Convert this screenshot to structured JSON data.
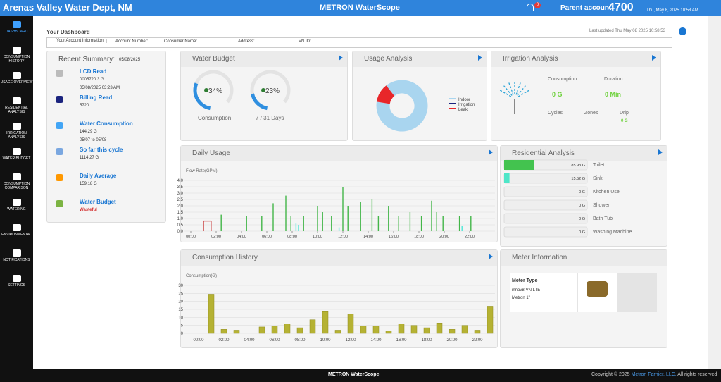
{
  "header": {
    "title": "Arenas Valley Water Dept, NM",
    "brand": "METRON WaterScope",
    "notification_count": "0",
    "parent_account_label": "Parent account:",
    "parent_account": "4700",
    "date": "Thu, May 8, 2025 10:58 AM"
  },
  "sidebar": [
    "DASHBOARD",
    "CONSUMPTION HISTORY",
    "USAGE OVERVIEW",
    "RESIDENTIAL ANALYSIS",
    "IRRIGATION ANALYSIS",
    "WATER BUDGET",
    "CONSUMPTION COMPARISON",
    "WATERING",
    "ENVIRONMENTAL",
    "NOTIFICATIONS",
    "SETTINGS"
  ],
  "dashboard": {
    "title": "Your Dashboard",
    "last_updated": "Last updated Thu May 08 2025 10:58:53",
    "account_info": "Your Account Information",
    "account_number": "Account Number:",
    "consumer_name": "Consumer Name:",
    "address": "Address:",
    "vn_id": "VN ID:"
  },
  "recent_summary": {
    "title": "Recent Summary:",
    "date": "05/08/2025",
    "items": [
      {
        "label": "LCD Read",
        "lines": [
          "0005720.3 G",
          "05/08/2025 03:23 AM"
        ]
      },
      {
        "label": "Billing Read",
        "lines": [
          "5720"
        ]
      },
      {
        "label": "Water Consumption",
        "lines": [
          "144.29 G",
          "05/07 to 05/08"
        ]
      },
      {
        "label": "So far this cycle",
        "lines": [
          "1114.27 G"
        ]
      },
      {
        "label": "Daily Average",
        "lines": [
          "159.18 G"
        ]
      },
      {
        "label": "Water Budget",
        "lines": [
          "Wasteful"
        ]
      }
    ]
  },
  "water_budget": {
    "title": "Water Budget",
    "gauges": [
      {
        "value": 34,
        "value_label": "34%",
        "label": "Consumption"
      },
      {
        "value": 23,
        "value_label": "23%",
        "label": "7 / 31 Days"
      }
    ]
  },
  "usage_analysis": {
    "type": "pie",
    "title": "Usage Analysis",
    "series": [
      {
        "name": "Indoor",
        "color": "#a9d5ef",
        "value": 88
      },
      {
        "name": "Irrigation",
        "color": "#1a237e",
        "value": 0
      },
      {
        "name": "Leak",
        "color": "#e8262a",
        "value": 12
      }
    ]
  },
  "irrigation_analysis": {
    "title": "Irrigation Analysis",
    "consumption_label": "Consumption",
    "consumption": "0 G",
    "duration_label": "Duration",
    "duration": "0 Min",
    "cycles_label": "Cycles",
    "zones_label": "Zones",
    "zones": "-",
    "drip_label": "Drip",
    "drip": "0 G"
  },
  "daily_usage": {
    "type": "line",
    "title": "Daily Usage",
    "ylabel": "Flow Rate(GPM)",
    "xlim": [
      -0.5,
      24
    ],
    "ylim": [
      0,
      4
    ],
    "yticks": [
      {
        "value": 0,
        "label": "0.0"
      },
      {
        "value": 0.5,
        "label": "0.5"
      },
      {
        "value": 1,
        "label": "1.0"
      },
      {
        "value": 1.5,
        "label": "1.5"
      },
      {
        "value": 2,
        "label": "2.0"
      },
      {
        "value": 2.5,
        "label": "2.5"
      },
      {
        "value": 3,
        "label": "3.0"
      },
      {
        "value": 3.5,
        "label": "3.5"
      },
      {
        "value": 4,
        "label": "4.0"
      }
    ],
    "xticks": [
      {
        "value": 0,
        "label": "00:00"
      },
      {
        "value": 2,
        "label": "02:00"
      },
      {
        "value": 4,
        "label": "04:00"
      },
      {
        "value": 6,
        "label": "06:00"
      },
      {
        "value": 8,
        "label": "08:00"
      },
      {
        "value": 10,
        "label": "10:00"
      },
      {
        "value": 12,
        "label": "12:00"
      },
      {
        "value": 14,
        "label": "14:00"
      },
      {
        "value": 16,
        "label": "16:00"
      },
      {
        "value": 18,
        "label": "18:00"
      },
      {
        "value": 20,
        "label": "20:00"
      },
      {
        "value": 22,
        "label": "22:00"
      }
    ],
    "series": [
      {
        "color": "#43b649",
        "x": [
          2.4,
          4.4,
          5.6,
          6.5,
          7.5,
          7.9,
          8.9,
          10,
          10.4,
          11.1,
          12,
          12.4,
          13.4,
          14.3,
          14.8,
          15.6,
          16.4,
          17.3,
          18.2,
          19,
          19.4,
          19.9,
          21.2,
          22.1
        ],
        "values": [
          1.3,
          1.2,
          1.2,
          2.2,
          2.8,
          1.2,
          1.2,
          2,
          1.5,
          1.2,
          3.5,
          2,
          2.3,
          2.5,
          1.2,
          2,
          1.2,
          1.5,
          1.2,
          2.4,
          1.5,
          1.2,
          1.2,
          1.2
        ]
      },
      {
        "color": "#4ee6d8",
        "x": [
          8.3,
          8.5,
          11.7,
          21.4
        ],
        "values": [
          0.6,
          0.5,
          0.3,
          0.4
        ]
      },
      {
        "color": "#c62828",
        "x": [
          1,
          1.6
        ],
        "values": [
          0.8,
          0.8
        ]
      }
    ]
  },
  "residential_analysis": {
    "title": "Residential Analysis",
    "items": [
      {
        "name": "Toilet",
        "value": 85.93,
        "value_label": "85.93 G",
        "color": "#43c34f"
      },
      {
        "name": "Sink",
        "value": 15.52,
        "value_label": "15.52 G",
        "color": "#4ee6c8"
      },
      {
        "name": "Kitchen Use",
        "value": 0,
        "value_label": "0 G",
        "color": "#43c34f"
      },
      {
        "name": "Shower",
        "value": 0,
        "value_label": "0 G",
        "color": "#43c34f"
      },
      {
        "name": "Bath Tub",
        "value": 0,
        "value_label": "0 G",
        "color": "#43c34f"
      },
      {
        "name": "Washing Machine",
        "value": 0,
        "value_label": "0 G",
        "color": "#43c34f"
      }
    ]
  },
  "consumption_history": {
    "type": "bar",
    "title": "Consumption History",
    "ylabel": "Consumption(G)",
    "color": "#b5b233",
    "categories": [
      "00:00",
      null,
      "02:00",
      null,
      "04:00",
      null,
      "06:00",
      null,
      "08:00",
      null,
      "10:00",
      null,
      "12:00",
      null,
      "14:00",
      null,
      "16:00",
      null,
      "18:00",
      null,
      "20:00",
      null,
      "22:00",
      null
    ],
    "values": [
      0,
      24.5,
      2.5,
      2,
      0,
      4,
      4.5,
      6,
      3.5,
      8.5,
      14,
      2,
      12,
      4.5,
      4.5,
      1.5,
      6,
      5,
      3.5,
      6.5,
      2.5,
      5,
      2,
      17
    ],
    "ylim": [
      0,
      30
    ],
    "yticks": [
      0,
      5,
      10,
      15,
      20,
      25,
      30
    ]
  },
  "meter_info": {
    "title": "Meter Information",
    "meter_type": "Meter Type",
    "model": "innov8-VN LTE",
    "make": "Metron  1\""
  },
  "footer": {
    "brand": "METRON WaterScope",
    "copyright": "Copyright © 2025",
    "company": "Metron Farnier, LLC.",
    "rights": "All rights reserved"
  }
}
